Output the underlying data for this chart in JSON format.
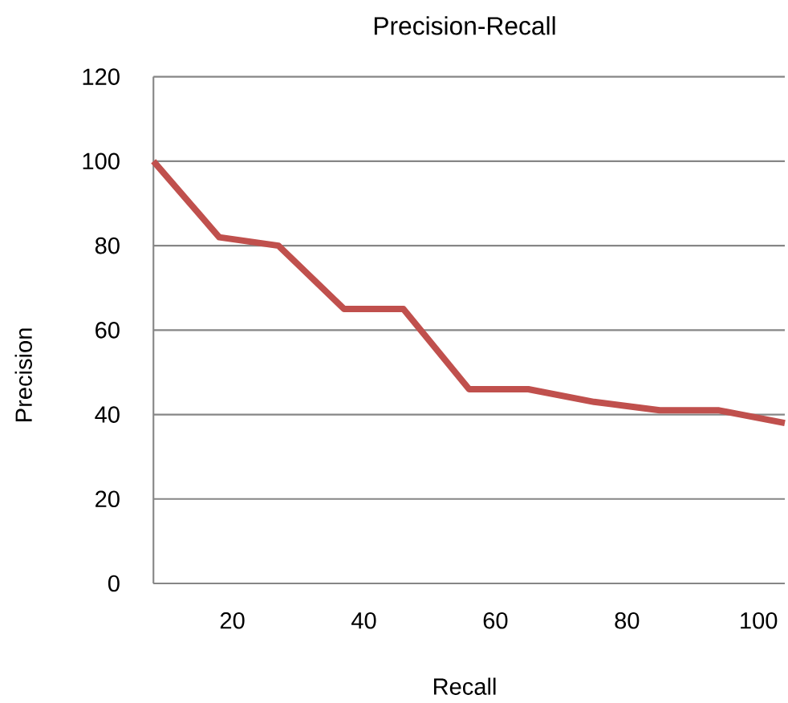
{
  "chart_data": {
    "type": "line",
    "title": "Precision-Recall",
    "xlabel": "Recall",
    "ylabel": "Precision",
    "x": [
      8,
      18,
      27,
      37,
      46,
      56,
      65,
      75,
      85,
      94,
      104
    ],
    "series": [
      {
        "color": "#c0504d",
        "values": [
          100,
          82,
          80,
          65,
          65,
          46,
          46,
          43,
          41,
          41,
          38
        ]
      }
    ],
    "xlim": [
      8,
      104
    ],
    "xticks": [
      20,
      40,
      60,
      80,
      100
    ],
    "ylim": [
      0,
      120
    ],
    "yticks": [
      0,
      20,
      40,
      60,
      80,
      100,
      120
    ],
    "grid": "y",
    "marker": "none",
    "line_style": "solid"
  }
}
